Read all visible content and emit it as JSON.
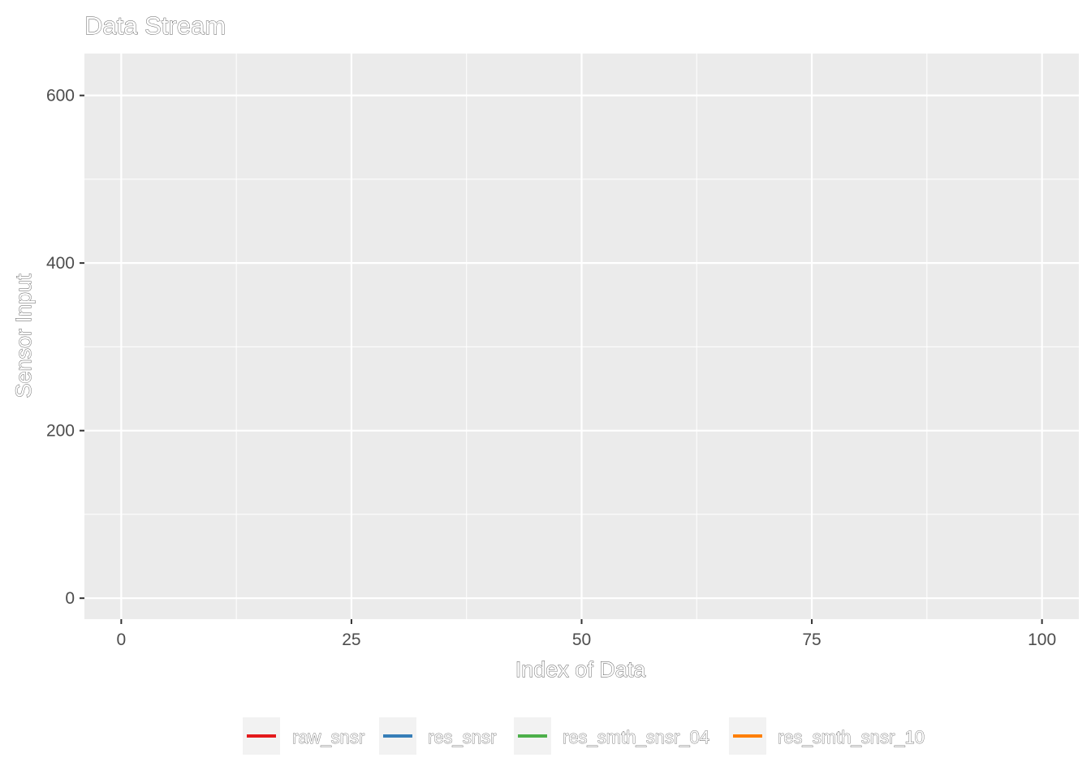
{
  "chart_data": {
    "type": "line",
    "title": "Data Stream",
    "xlabel": "Index of Data",
    "ylabel": "Sensor Input",
    "xlim": [
      -4,
      104
    ],
    "ylim": [
      -25,
      650
    ],
    "x_ticks": [
      0,
      25,
      50,
      75,
      100
    ],
    "y_ticks": [
      0,
      200,
      400,
      600
    ],
    "x_tick_labels": [
      "0",
      "25",
      "50",
      "75",
      "100"
    ],
    "y_tick_labels": [
      "0",
      "200",
      "400",
      "600"
    ],
    "grid": true,
    "legend_position": "bottom",
    "series": [
      {
        "name": "raw_snsr",
        "color": "#e41a1c",
        "values": []
      },
      {
        "name": "res_snsr",
        "color": "#377eb8",
        "values": []
      },
      {
        "name": "res_smth_snsr_04",
        "color": "#4daf4a",
        "values": []
      },
      {
        "name": "res_smth_snsr_10",
        "color": "#ff7f00",
        "values": []
      }
    ]
  },
  "colors": {
    "panel_background": "#ebebeb",
    "grid_major": "#ffffff",
    "legend_key_background": "#f2f2f2"
  }
}
